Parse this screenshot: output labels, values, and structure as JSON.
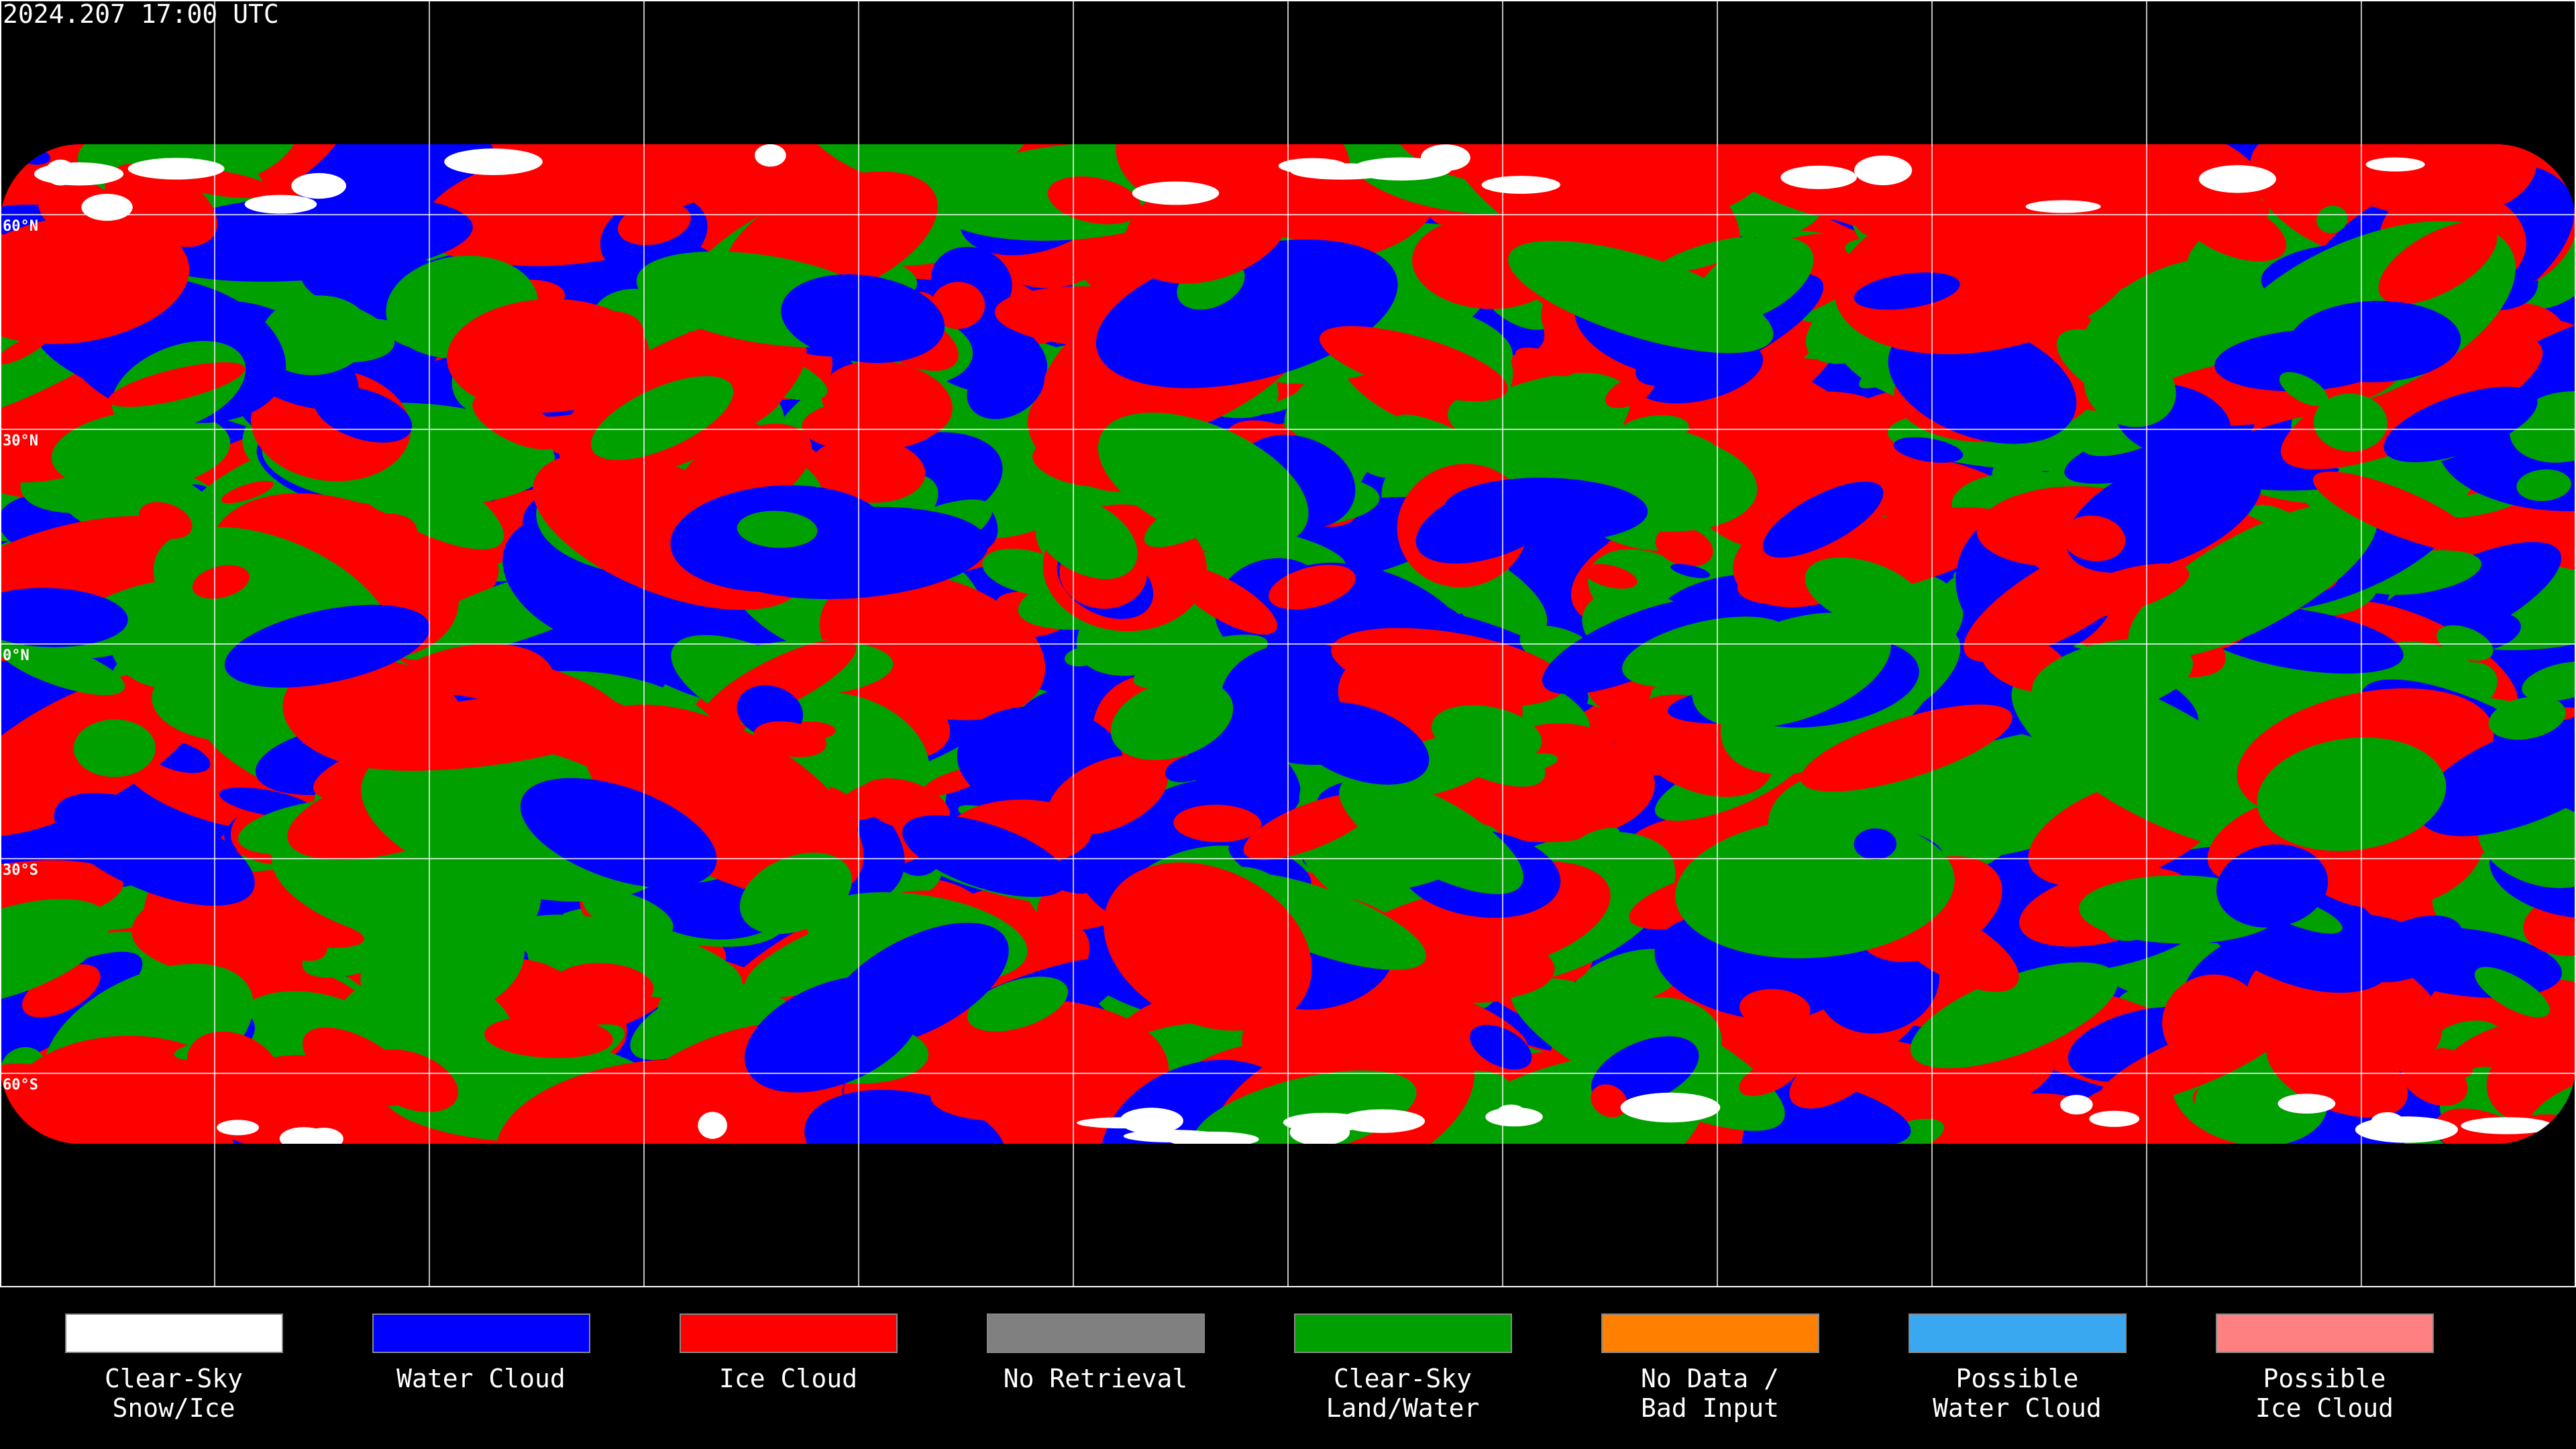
{
  "header": {
    "title": "2024.207 17:00 UTC"
  },
  "map": {
    "latitude_labels": [
      "60°N",
      "30°N",
      "0°N",
      "30°S",
      "60°S"
    ]
  },
  "legend": {
    "items": [
      {
        "label": [
          "Clear-Sky",
          "Snow/Ice"
        ],
        "color": "#ffffff"
      },
      {
        "label": [
          "Water Cloud"
        ],
        "color": "#0000ff"
      },
      {
        "label": [
          "Ice Cloud"
        ],
        "color": "#ff0000"
      },
      {
        "label": [
          "No Retrieval"
        ],
        "color": "#808080"
      },
      {
        "label": [
          "Clear-Sky",
          "Land/Water"
        ],
        "color": "#00a000"
      },
      {
        "label": [
          "No Data /",
          "Bad Input"
        ],
        "color": "#ff8000"
      },
      {
        "label": [
          "Possible",
          "Water Cloud"
        ],
        "color": "#3aa8f0"
      },
      {
        "label": [
          "Possible",
          "Ice Cloud"
        ],
        "color": "#ff8080"
      }
    ]
  }
}
